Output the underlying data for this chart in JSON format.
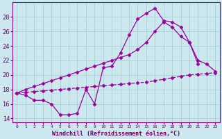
{
  "xlabel": "Windchill (Refroidissement éolien,°C)",
  "background_color": "#cce8ee",
  "grid_color": "#aad4d8",
  "line_color": "#990099",
  "ylim": [
    13.5,
    30
  ],
  "yticks": [
    14,
    16,
    18,
    20,
    22,
    24,
    26,
    28
  ],
  "xlim": [
    -0.5,
    23.5
  ],
  "line1_x": [
    0,
    1,
    2,
    3,
    4,
    5,
    6,
    7,
    8,
    9,
    10,
    11,
    12,
    13,
    14,
    15,
    16,
    17,
    18,
    19,
    20,
    21
  ],
  "line1_y": [
    17.5,
    17.2,
    16.5,
    16.5,
    16.0,
    14.5,
    14.5,
    14.7,
    18.0,
    16.0,
    21.0,
    21.2,
    23.0,
    25.5,
    27.7,
    28.5,
    29.2,
    27.5,
    27.3,
    26.6,
    24.5,
    21.5
  ],
  "line2_x": [
    0,
    1,
    2,
    3,
    4,
    5,
    6,
    7,
    8,
    9,
    10,
    11,
    12,
    13,
    14,
    15,
    16,
    17,
    18,
    19,
    20,
    21,
    22,
    23
  ],
  "line2_y": [
    17.5,
    18.0,
    18.4,
    18.8,
    19.2,
    19.6,
    20.0,
    20.4,
    20.8,
    21.2,
    21.6,
    22.0,
    22.4,
    22.8,
    23.5,
    24.5,
    26.0,
    27.3,
    26.6,
    25.3,
    24.5,
    22.0,
    21.5,
    20.5
  ],
  "line3_x": [
    0,
    1,
    2,
    3,
    4,
    5,
    6,
    7,
    8,
    9,
    10,
    11,
    12,
    13,
    14,
    15,
    16,
    17,
    18,
    19,
    20,
    21,
    22,
    23
  ],
  "line3_y": [
    17.5,
    17.6,
    17.7,
    17.8,
    17.9,
    18.0,
    18.1,
    18.2,
    18.3,
    18.4,
    18.5,
    18.6,
    18.7,
    18.8,
    18.9,
    19.0,
    19.2,
    19.4,
    19.6,
    19.8,
    20.0,
    20.1,
    20.2,
    20.3
  ]
}
